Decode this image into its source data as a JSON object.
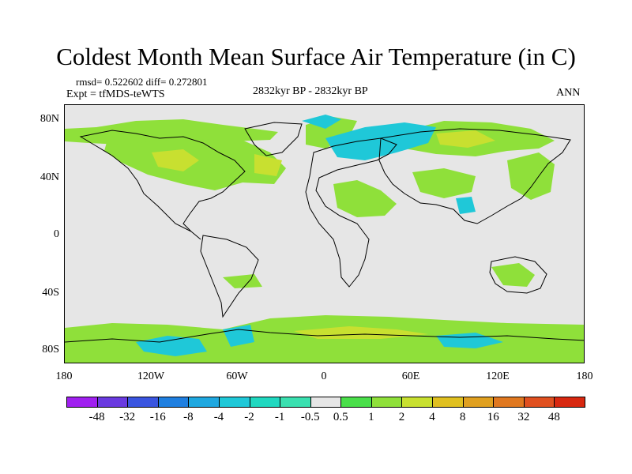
{
  "title": "Coldest Month Mean Surface Air Temperature (in C)",
  "stats": "rmsd= 0.522602 diff= 0.272801",
  "experiment": "Expt = tfMDS-teWTS",
  "period": "2832kyr BP - 2832kyr BP",
  "season": "ANN",
  "lat_labels": [
    "80N",
    "40N",
    "0",
    "40S",
    "80S"
  ],
  "lon_labels": [
    "180",
    "120W",
    "60W",
    "0",
    "60E",
    "120E",
    "180"
  ],
  "legend_labels": [
    "-48",
    "-32",
    "-16",
    "-8",
    "-4",
    "-2",
    "-1",
    "-0.5",
    "0.5",
    "1",
    "2",
    "4",
    "8",
    "16",
    "32",
    "48"
  ],
  "legend_colors": [
    "#a020f0",
    "#6a3ae0",
    "#3a55e0",
    "#1f7fe0",
    "#1fa8e0",
    "#1fc8d8",
    "#20d8c0",
    "#3ae0b0",
    "#e6e6e6",
    "#4adf4a",
    "#8fe03a",
    "#c8e030",
    "#e0c020",
    "#e0a020",
    "#e07820",
    "#e05020",
    "#d82810"
  ],
  "colors": {
    "background": "#e6e6e6",
    "coast": "#000000",
    "warm": "#8fe03a",
    "warm_mid": "#c8e030",
    "cool": "#1fc8d8",
    "cool_light": "#3ae0b0"
  }
}
